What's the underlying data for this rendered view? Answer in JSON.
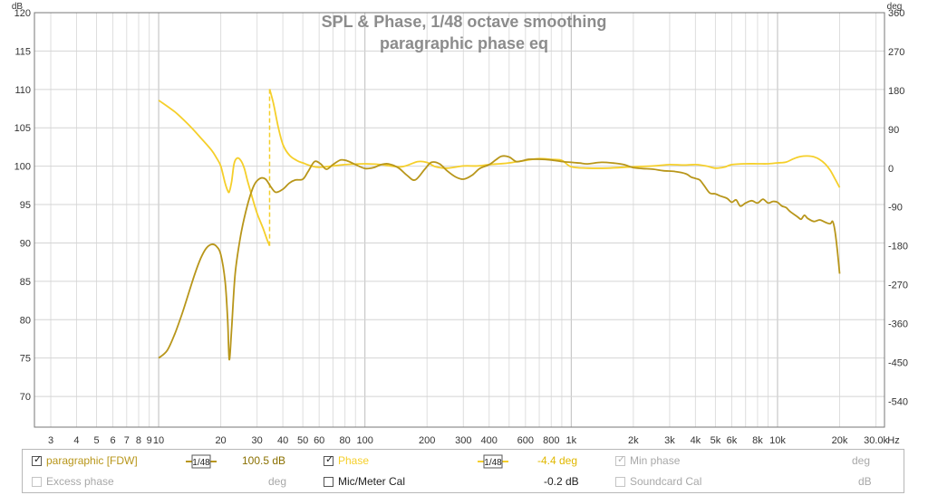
{
  "chart_data": {
    "type": "line",
    "title": "SPL & Phase, 1/48 octave smoothing",
    "subtitle": "paragraphic phase eq",
    "x_scale": "log",
    "xlim": [
      2.5,
      33000
    ],
    "x_unit_label": "Hz",
    "x_ticks": [
      {
        "v": 3,
        "l": "3"
      },
      {
        "v": 4,
        "l": "4"
      },
      {
        "v": 5,
        "l": "5"
      },
      {
        "v": 6,
        "l": "6"
      },
      {
        "v": 7,
        "l": "7"
      },
      {
        "v": 8,
        "l": "8"
      },
      {
        "v": 9,
        "l": "9"
      },
      {
        "v": 10,
        "l": "10"
      },
      {
        "v": 20,
        "l": "20"
      },
      {
        "v": 30,
        "l": "30"
      },
      {
        "v": 40,
        "l": "40"
      },
      {
        "v": 50,
        "l": "50"
      },
      {
        "v": 60,
        "l": "60"
      },
      {
        "v": 80,
        "l": "80"
      },
      {
        "v": 100,
        "l": "100"
      },
      {
        "v": 200,
        "l": "200"
      },
      {
        "v": 300,
        "l": "300"
      },
      {
        "v": 400,
        "l": "400"
      },
      {
        "v": 600,
        "l": "600"
      },
      {
        "v": 800,
        "l": "800"
      },
      {
        "v": 1000,
        "l": "1k"
      },
      {
        "v": 2000,
        "l": "2k"
      },
      {
        "v": 3000,
        "l": "3k"
      },
      {
        "v": 4000,
        "l": "4k"
      },
      {
        "v": 5000,
        "l": "5k"
      },
      {
        "v": 6000,
        "l": "6k"
      },
      {
        "v": 8000,
        "l": "8k"
      },
      {
        "v": 10000,
        "l": "10k"
      },
      {
        "v": 20000,
        "l": "20k"
      },
      {
        "v": 30000,
        "l": "30.0k"
      }
    ],
    "y_left": {
      "unit": "dB",
      "min": 66,
      "max": 120,
      "ticks": [
        70,
        75,
        80,
        85,
        90,
        95,
        100,
        105,
        110,
        115,
        120
      ]
    },
    "y_right": {
      "unit": "deg",
      "min": -600,
      "max": 360,
      "ticks": [
        360,
        270,
        180,
        90,
        0,
        -90,
        -180,
        -270,
        -360,
        -450,
        -540
      ]
    },
    "grid": true,
    "series": [
      {
        "name": "paragraphic [FDW]",
        "axis": "left",
        "color": "#b8961a",
        "points": [
          [
            10,
            75
          ],
          [
            11,
            76
          ],
          [
            12,
            78.2
          ],
          [
            13,
            80.8
          ],
          [
            14,
            83.5
          ],
          [
            15,
            86
          ],
          [
            16,
            88
          ],
          [
            17,
            89.3
          ],
          [
            18,
            89.8
          ],
          [
            19,
            89.6
          ],
          [
            20,
            88.5
          ],
          [
            21,
            85
          ],
          [
            21.6,
            80
          ],
          [
            22,
            74.8
          ],
          [
            22.6,
            79
          ],
          [
            23.5,
            86
          ],
          [
            25,
            91
          ],
          [
            27,
            95
          ],
          [
            29,
            97.5
          ],
          [
            31,
            98.4
          ],
          [
            33,
            98.3
          ],
          [
            35,
            97.3
          ],
          [
            37,
            96.6
          ],
          [
            40,
            97
          ],
          [
            43,
            97.8
          ],
          [
            46,
            98.2
          ],
          [
            50,
            98.3
          ],
          [
            53,
            99.3
          ],
          [
            57,
            100.6
          ],
          [
            61,
            100.3
          ],
          [
            65,
            99.6
          ],
          [
            70,
            100.2
          ],
          [
            76,
            100.8
          ],
          [
            82,
            100.7
          ],
          [
            90,
            100.2
          ],
          [
            100,
            99.7
          ],
          [
            110,
            99.8
          ],
          [
            120,
            100.2
          ],
          [
            130,
            100.3
          ],
          [
            145,
            99.8
          ],
          [
            160,
            98.8
          ],
          [
            175,
            98.2
          ],
          [
            195,
            99.6
          ],
          [
            210,
            100.5
          ],
          [
            230,
            100.3
          ],
          [
            250,
            99.4
          ],
          [
            275,
            98.6
          ],
          [
            300,
            98.3
          ],
          [
            330,
            98.8
          ],
          [
            360,
            99.7
          ],
          [
            400,
            100.2
          ],
          [
            430,
            100.8
          ],
          [
            460,
            101.3
          ],
          [
            500,
            101.2
          ],
          [
            540,
            100.6
          ],
          [
            580,
            100.7
          ],
          [
            620,
            100.9
          ],
          [
            700,
            100.9
          ],
          [
            800,
            100.8
          ],
          [
            900,
            100.6
          ],
          [
            1000,
            100.5
          ],
          [
            1100,
            100.4
          ],
          [
            1200,
            100.3
          ],
          [
            1400,
            100.5
          ],
          [
            1600,
            100.4
          ],
          [
            1800,
            100.2
          ],
          [
            2000,
            99.8
          ],
          [
            2200,
            99.7
          ],
          [
            2500,
            99.6
          ],
          [
            2800,
            99.4
          ],
          [
            3200,
            99.3
          ],
          [
            3600,
            99
          ],
          [
            3800,
            98.6
          ],
          [
            4000,
            98.4
          ],
          [
            4200,
            98.2
          ],
          [
            4400,
            97.5
          ],
          [
            4700,
            96.5
          ],
          [
            5000,
            96.4
          ],
          [
            5300,
            96.1
          ],
          [
            5700,
            95.8
          ],
          [
            6000,
            95.3
          ],
          [
            6300,
            95.6
          ],
          [
            6600,
            94.8
          ],
          [
            7000,
            95.2
          ],
          [
            7500,
            95.5
          ],
          [
            8000,
            95.2
          ],
          [
            8500,
            95.7
          ],
          [
            9000,
            95.2
          ],
          [
            9500,
            95.4
          ],
          [
            10000,
            95.3
          ],
          [
            10500,
            94.8
          ],
          [
            11000,
            94.6
          ],
          [
            11500,
            94.1
          ],
          [
            12500,
            93.4
          ],
          [
            13000,
            93.1
          ],
          [
            13500,
            93.6
          ],
          [
            14000,
            93.2
          ],
          [
            15000,
            92.8
          ],
          [
            16000,
            93
          ],
          [
            17000,
            92.7
          ],
          [
            18000,
            92.5
          ],
          [
            18500,
            92.8
          ],
          [
            19000,
            91.5
          ],
          [
            19500,
            89
          ],
          [
            20000,
            86
          ]
        ]
      },
      {
        "name": "Phase",
        "axis": "right",
        "color": "#f5cf2a",
        "points": [
          [
            10,
            157
          ],
          [
            12,
            130
          ],
          [
            14,
            100
          ],
          [
            16,
            70
          ],
          [
            18,
            42
          ],
          [
            19,
            25
          ],
          [
            20,
            5
          ],
          [
            21,
            -35
          ],
          [
            21.6,
            -52
          ],
          [
            22,
            -55
          ],
          [
            22.6,
            -30
          ],
          [
            23.2,
            10
          ],
          [
            24,
            23
          ],
          [
            25,
            18
          ],
          [
            26,
            0
          ],
          [
            27,
            -30
          ],
          [
            28.5,
            -70
          ],
          [
            30,
            -105
          ],
          [
            32,
            -138
          ],
          [
            33.5,
            -165
          ],
          [
            34.5,
            -180
          ],
          [
            34.5,
            183
          ],
          [
            36,
            150
          ],
          [
            38,
            95
          ],
          [
            40,
            55
          ],
          [
            43,
            30
          ],
          [
            47,
            17
          ],
          [
            50,
            12
          ],
          [
            55,
            5
          ],
          [
            60,
            2
          ],
          [
            70,
            5
          ],
          [
            80,
            8
          ],
          [
            100,
            10
          ],
          [
            120,
            8
          ],
          [
            150,
            3
          ],
          [
            180,
            15
          ],
          [
            200,
            13
          ],
          [
            220,
            3
          ],
          [
            250,
            0
          ],
          [
            300,
            5
          ],
          [
            350,
            5
          ],
          [
            400,
            8
          ],
          [
            450,
            10
          ],
          [
            500,
            12
          ],
          [
            600,
            18
          ],
          [
            700,
            22
          ],
          [
            800,
            20
          ],
          [
            900,
            18
          ],
          [
            1000,
            3
          ],
          [
            1200,
            0
          ],
          [
            1500,
            0
          ],
          [
            2000,
            3
          ],
          [
            2500,
            5
          ],
          [
            3000,
            8
          ],
          [
            3500,
            7
          ],
          [
            4000,
            8
          ],
          [
            4500,
            5
          ],
          [
            5000,
            0
          ],
          [
            5500,
            2
          ],
          [
            6000,
            8
          ],
          [
            7000,
            10
          ],
          [
            8000,
            10
          ],
          [
            9000,
            10
          ],
          [
            10000,
            12
          ],
          [
            11000,
            14
          ],
          [
            12000,
            22
          ],
          [
            13000,
            27
          ],
          [
            14000,
            28
          ],
          [
            15000,
            26
          ],
          [
            16000,
            20
          ],
          [
            17000,
            10
          ],
          [
            18000,
            -5
          ],
          [
            19000,
            -25
          ],
          [
            20000,
            -45
          ]
        ]
      }
    ],
    "phase_wrap_segment": {
      "x": 34.5,
      "from": -180,
      "to": 183
    }
  },
  "legend": {
    "row1": {
      "spl_label": "paragraphic [FDW]",
      "spl_smoothing": "1/48",
      "spl_value": "100.5 dB",
      "phase_label": "Phase",
      "phase_smoothing": "1/48",
      "phase_value": "-4.4 deg",
      "minphase_label": "Min phase",
      "minphase_unit": "deg"
    },
    "row2": {
      "excess_label": "Excess phase",
      "excess_unit": "deg",
      "mic_label": "Mic/Meter Cal",
      "mic_value": "-0.2 dB",
      "soundcard_label": "Soundcard Cal",
      "soundcard_unit": "dB"
    },
    "checks": {
      "spl": true,
      "phase": true,
      "minphase": true,
      "excess": false,
      "mic": false,
      "soundcard": false
    },
    "colors": {
      "spl": "#b8961a",
      "phase": "#f5cf2a",
      "value_spl": "#8a7000",
      "value_phase": "#e0b800",
      "disabled": "#a8a8a8"
    }
  }
}
